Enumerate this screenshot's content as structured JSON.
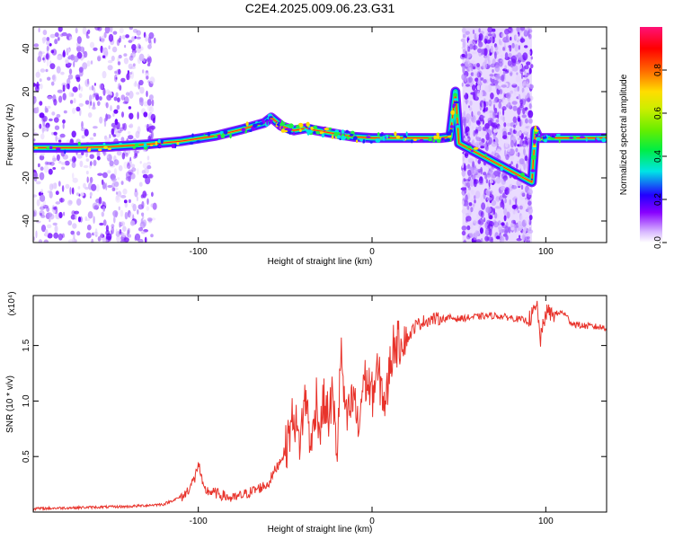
{
  "title": "C2E4.2025.009.06.23.G31",
  "chart_data": [
    {
      "type": "heatmap",
      "xlabel": "Height of straight line (km)",
      "ylabel": "Frequency (Hz)",
      "xlim": [
        -195,
        135
      ],
      "ylim": [
        -50,
        50
      ],
      "xticks": [
        -100,
        0,
        100
      ],
      "yticks": [
        -40,
        -20,
        0,
        20,
        40
      ],
      "colorbar": {
        "label": "Normalized spectral amplitude",
        "range": [
          0.0,
          1.0
        ],
        "ticks": [
          0.0,
          0.2,
          0.4,
          0.6,
          0.8
        ],
        "colors": [
          "#ffffff",
          "#8800ff",
          "#0000ff",
          "#00e5e5",
          "#00ee44",
          "#aaee00",
          "#ffdd00",
          "#ff6600",
          "#ff0000",
          "#ff1177"
        ]
      },
      "ridge": {
        "x": [
          -195,
          -170,
          -150,
          -130,
          -110,
          -90,
          -75,
          -62,
          -58,
          -52,
          -45,
          -38,
          -32,
          -25,
          -18,
          -10,
          0,
          10,
          20,
          30,
          40,
          45,
          48,
          50,
          92,
          94,
          96,
          100,
          110,
          135
        ],
        "y": [
          -6,
          -6,
          -5.5,
          -4.5,
          -3,
          -0.5,
          2.5,
          5.5,
          8,
          4,
          2,
          3,
          2,
          1,
          0,
          -1,
          -1.5,
          -1.5,
          -1.5,
          -1.5,
          -1.5,
          -1,
          20,
          -4,
          -22,
          2,
          -1.5,
          -1.5,
          -1.5,
          -1.5
        ]
      },
      "noise_bands_x": [
        [
          -195,
          -125
        ],
        [
          52,
          92
        ]
      ]
    },
    {
      "type": "line",
      "xlabel": "Height of straight line (km)",
      "ylabel": "SNR (10 * v/v)",
      "y_multiplier": "(x10⁴)",
      "xlim": [
        -195,
        135
      ],
      "ylim": [
        0,
        1.95
      ],
      "xticks": [
        -100,
        0,
        100
      ],
      "yticks": [
        0.5,
        1.0,
        1.5
      ],
      "color": "#e8332b",
      "x": [
        -195,
        -170,
        -140,
        -120,
        -108,
        -102,
        -100,
        -97,
        -90,
        -80,
        -70,
        -60,
        -55,
        -50,
        -45,
        -42,
        -40,
        -38,
        -35,
        -32,
        -30,
        -28,
        -25,
        -23,
        -20,
        -18,
        -15,
        -12,
        -10,
        -8,
        -5,
        -2,
        0,
        3,
        5,
        8,
        10,
        13,
        15,
        18,
        20,
        25,
        30,
        35,
        40,
        45,
        50,
        60,
        70,
        80,
        90,
        95,
        97,
        100,
        105,
        110,
        115,
        120,
        135
      ],
      "y": [
        0.03,
        0.04,
        0.05,
        0.07,
        0.15,
        0.3,
        0.45,
        0.2,
        0.17,
        0.12,
        0.18,
        0.25,
        0.4,
        0.55,
        0.9,
        0.6,
        0.85,
        1.05,
        0.55,
        1.05,
        0.7,
        1.0,
        0.85,
        1.05,
        0.55,
        1.45,
        0.8,
        0.95,
        1.05,
        0.7,
        1.2,
        1.15,
        1.05,
        1.25,
        1.15,
        0.95,
        1.3,
        1.55,
        1.5,
        1.6,
        1.55,
        1.68,
        1.72,
        1.74,
        1.74,
        1.75,
        1.74,
        1.76,
        1.77,
        1.75,
        1.72,
        1.85,
        1.55,
        1.8,
        1.78,
        1.8,
        1.7,
        1.68,
        1.66
      ]
    }
  ]
}
